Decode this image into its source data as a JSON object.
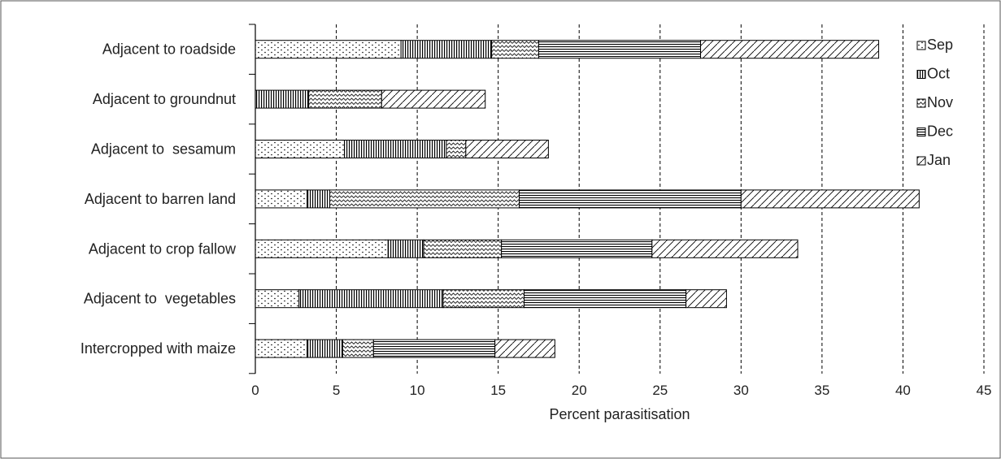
{
  "chart_data": {
    "type": "bar",
    "orientation": "horizontal",
    "stacked": true,
    "categories": [
      "Adjacent to roadside",
      "Adjacent to groundnut",
      "Adjacent to  sesamum",
      "Adjacent to barren land",
      "Adjacent to crop fallow",
      "Adjacent to  vegetables",
      "Intercropped with maize"
    ],
    "series": [
      {
        "name": "Sep",
        "pattern": "dots",
        "values": [
          9.0,
          0.0,
          5.5,
          3.2,
          8.2,
          2.7,
          3.2
        ]
      },
      {
        "name": "Oct",
        "pattern": "vertical",
        "values": [
          5.6,
          3.3,
          6.3,
          1.4,
          2.2,
          8.9,
          2.2
        ]
      },
      {
        "name": "Nov",
        "pattern": "wave",
        "values": [
          2.9,
          4.5,
          1.2,
          11.7,
          4.8,
          5.0,
          1.9
        ]
      },
      {
        "name": "Dec",
        "pattern": "horizontal",
        "values": [
          10.0,
          0.0,
          0.0,
          13.7,
          9.3,
          10.0,
          7.5
        ]
      },
      {
        "name": "Jan",
        "pattern": "diagonal",
        "values": [
          11.0,
          6.4,
          5.1,
          11.0,
          9.0,
          2.5,
          3.7
        ]
      }
    ],
    "title": "",
    "xlabel": "Percent parasitisation",
    "ylabel": "",
    "xlim": [
      0,
      45
    ],
    "xticks": [
      "0",
      "5",
      "10",
      "15",
      "20",
      "25",
      "30",
      "35",
      "40",
      "45"
    ],
    "grid": "vertical dashed",
    "legend_position": "right",
    "colors": {
      "bar_fill": "#ffffff",
      "pattern": "#000000",
      "grid": "#000000"
    }
  }
}
